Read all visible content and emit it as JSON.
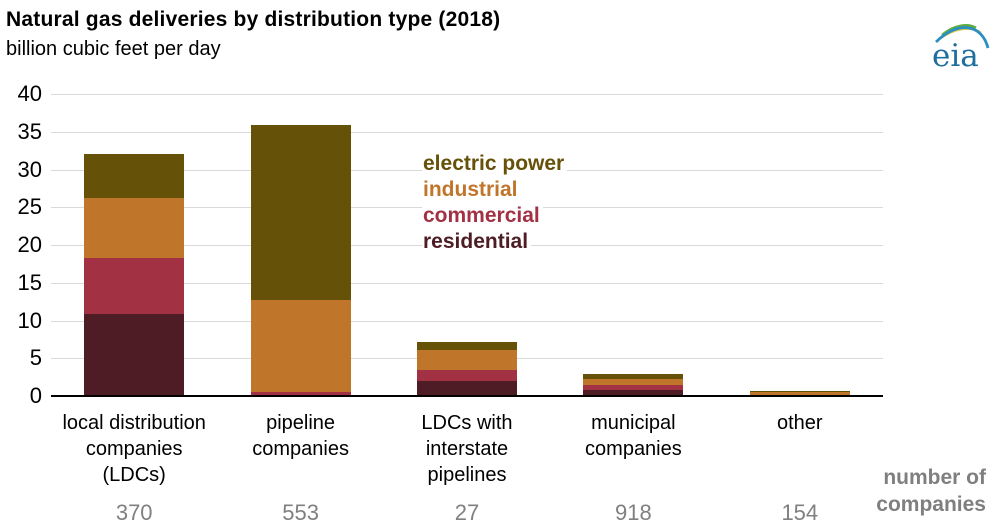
{
  "header": {
    "title": "Natural gas deliveries by distribution type (2018)",
    "subtitle": "billion cubic feet per day",
    "logo_text": "eia"
  },
  "colors": {
    "electric_power": "#665108",
    "industrial": "#c0762a",
    "commercial": "#a33144",
    "residential": "#4e1c24",
    "grid": "#d9d9d9",
    "axis": "#000000",
    "count_gray": "#808080",
    "logo_blue": "#1e6fa0"
  },
  "legend": {
    "items": [
      {
        "label": "electric power",
        "color": "#665108"
      },
      {
        "label": "industrial",
        "color": "#c0762a"
      },
      {
        "label": "commercial",
        "color": "#a33144"
      },
      {
        "label": "residential",
        "color": "#4e1c24"
      }
    ]
  },
  "chart_data": {
    "type": "bar",
    "stacked": true,
    "title": "Natural gas deliveries by distribution type (2018)",
    "ylabel": "billion cubic feet per day",
    "ylim": [
      0,
      40
    ],
    "yticks": [
      0,
      5,
      10,
      15,
      20,
      25,
      30,
      35,
      40
    ],
    "grid": true,
    "legend_position": "inside-upper-middle",
    "categories": [
      "local distribution companies (LDCs)",
      "pipeline companies",
      "LDCs with interstate pipelines",
      "municipal companies",
      "other"
    ],
    "category_lines": [
      [
        "local distribution",
        "companies",
        "(LDCs)"
      ],
      [
        "pipeline",
        "companies"
      ],
      [
        "LDCs with",
        "interstate",
        "pipelines"
      ],
      [
        "municipal",
        "companies"
      ],
      [
        "other"
      ]
    ],
    "series": [
      {
        "name": "residential",
        "color": "#4e1c24",
        "values": [
          10.9,
          0.2,
          2.0,
          0.8,
          0.05
        ]
      },
      {
        "name": "commercial",
        "color": "#a33144",
        "values": [
          7.4,
          0.3,
          1.4,
          0.7,
          0.1
        ]
      },
      {
        "name": "industrial",
        "color": "#c0762a",
        "values": [
          7.9,
          12.2,
          2.7,
          0.8,
          0.4
        ]
      },
      {
        "name": "electric power",
        "color": "#665108",
        "values": [
          5.8,
          23.2,
          1.0,
          0.6,
          0.15
        ]
      }
    ],
    "totals": [
      32.0,
      35.9,
      7.1,
      2.9,
      0.7
    ],
    "number_of_companies": [
      "370",
      "553",
      "27",
      "918",
      "154"
    ]
  },
  "footer": {
    "number_of_companies_line1": "number of",
    "number_of_companies_line2": "companies"
  }
}
